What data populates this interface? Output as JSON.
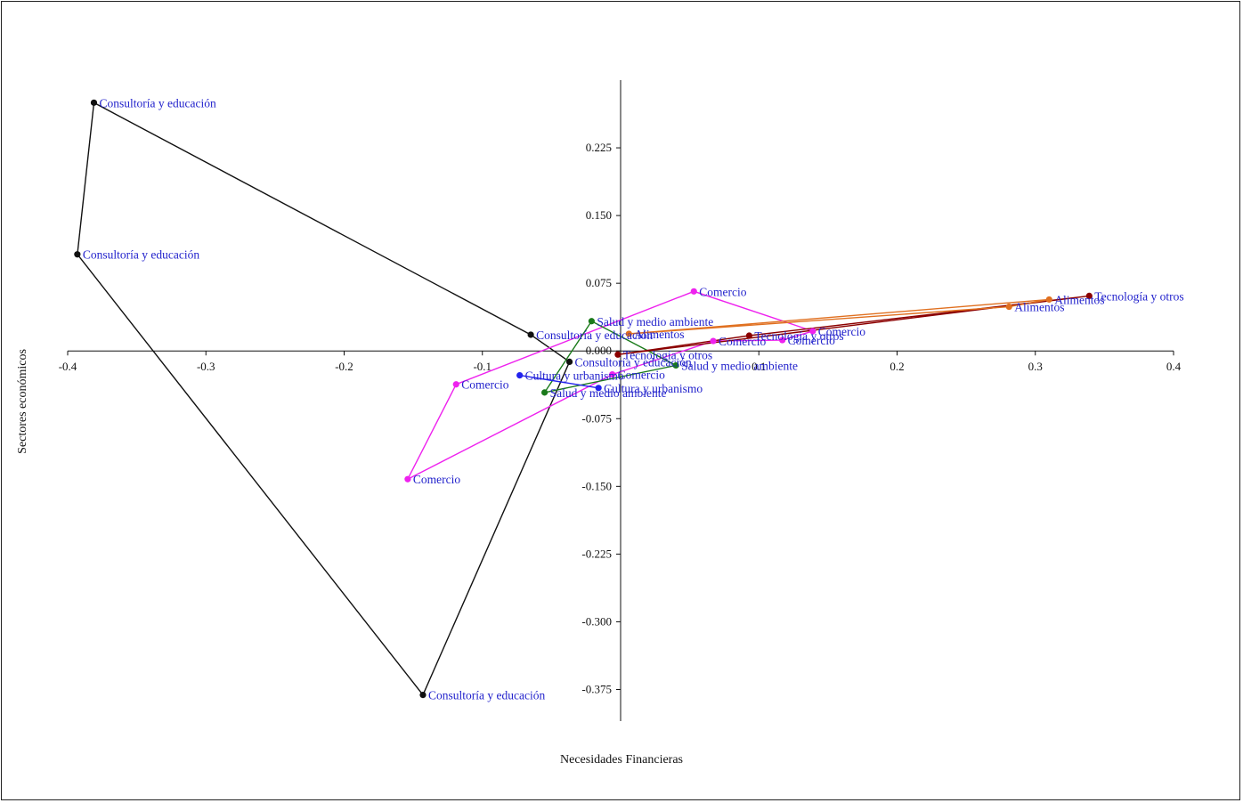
{
  "chart_data": {
    "type": "scatter",
    "title": "",
    "xlabel": "Necesidades Financieras",
    "ylabel": "Sectores económicos",
    "xlim": [
      -0.4,
      0.4
    ],
    "ylim": [
      -0.41,
      0.3
    ],
    "x_ticks": [
      -0.4,
      -0.3,
      -0.2,
      -0.1,
      0.1,
      0.2,
      0.3,
      0.4
    ],
    "x_tick_labels": [
      "-0.4",
      "-0.3",
      "-0.2",
      "-0.1",
      "0.1",
      "0.2",
      "0.3",
      "0.4"
    ],
    "y_ticks": [
      0.225,
      0.15,
      0.075,
      0.0,
      -0.075,
      -0.15,
      -0.225,
      -0.3,
      -0.375
    ],
    "y_tick_labels": [
      "0.225",
      "0.150",
      "0.075",
      "0.000",
      "-0.075",
      "-0.150",
      "-0.225",
      "-0.300",
      "-0.375"
    ],
    "grid": false,
    "label_color": "#2222cc",
    "series": [
      {
        "color": "#111111",
        "points": [
          {
            "x": -0.381,
            "y": 0.275,
            "label": "Consultoría y educación"
          },
          {
            "x": -0.393,
            "y": 0.107,
            "label": "Consultoría y educación"
          },
          {
            "x": -0.143,
            "y": -0.381,
            "label": "Consultoría y educación"
          },
          {
            "x": -0.037,
            "y": -0.012,
            "label": "Consultoría y educación"
          },
          {
            "x": -0.065,
            "y": 0.018,
            "label": "Consultoría y educación"
          }
        ]
      },
      {
        "color": "#ee22ee",
        "points": [
          {
            "x": -0.154,
            "y": -0.142,
            "label": "Comercio"
          },
          {
            "x": -0.119,
            "y": -0.037,
            "label": "Comercio"
          },
          {
            "x": 0.053,
            "y": 0.066,
            "label": "Comercio"
          },
          {
            "x": 0.139,
            "y": 0.022,
            "label": "Comercio"
          },
          {
            "x": 0.117,
            "y": 0.012,
            "label": "Comercio"
          },
          {
            "x": 0.067,
            "y": 0.011,
            "label": "Comercio"
          },
          {
            "x": -0.006,
            "y": -0.026,
            "label": "Comercio"
          }
        ]
      },
      {
        "color": "#1a7a1a",
        "points": [
          {
            "x": -0.055,
            "y": -0.046,
            "label": "Salud y medio ambiente"
          },
          {
            "x": -0.021,
            "y": 0.033,
            "label": "Salud y medio ambiente"
          },
          {
            "x": 0.04,
            "y": -0.016,
            "label": "Salud y medio ambiente"
          }
        ]
      },
      {
        "color": "#2222ee",
        "points": [
          {
            "x": -0.073,
            "y": -0.027,
            "label": "Cultura y urbanismo"
          },
          {
            "x": -0.016,
            "y": -0.041,
            "label": "Cultura y urbanismo"
          }
        ]
      },
      {
        "color": "#8b0000",
        "points": [
          {
            "x": -0.002,
            "y": -0.004,
            "label": "Tecnología y otros"
          },
          {
            "x": 0.339,
            "y": 0.061,
            "label": "Tecnología y otros"
          },
          {
            "x": 0.093,
            "y": 0.017,
            "label": "Tecnología y otros"
          }
        ]
      },
      {
        "color": "#e07020",
        "points": [
          {
            "x": 0.006,
            "y": 0.019,
            "label": "Alimentos"
          },
          {
            "x": 0.31,
            "y": 0.057,
            "label": "Alimentos"
          },
          {
            "x": 0.281,
            "y": 0.049,
            "label": "Alimentos"
          }
        ]
      }
    ]
  }
}
